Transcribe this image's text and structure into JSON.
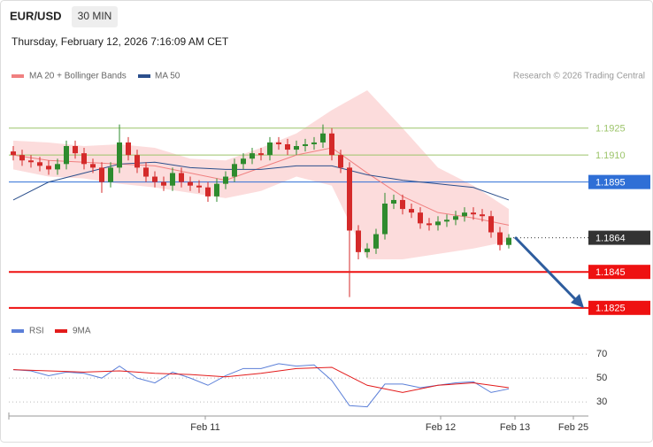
{
  "header": {
    "symbol": "EUR/USD",
    "interval": "30 MIN",
    "timestamp": "Thursday, February 12, 2026 7:16:09 AM CET",
    "copyright": "Research © 2026 Trading Central"
  },
  "chart_data": [
    {
      "type": "candlestick",
      "x": [
        0,
        1,
        2,
        3,
        4,
        5,
        6,
        7,
        8,
        9,
        10,
        11,
        12,
        13,
        14,
        15,
        16,
        17,
        18,
        19,
        20,
        21,
        22,
        23,
        24,
        25,
        26,
        27,
        28,
        29,
        30,
        31,
        32,
        33,
        34,
        35,
        36,
        37,
        38,
        39,
        40,
        41,
        42,
        43,
        44,
        45,
        46,
        47,
        48,
        49,
        50,
        51,
        52,
        53,
        54,
        55,
        56
      ],
      "open": [
        1.1912,
        1.191,
        1.1907,
        1.1906,
        1.1904,
        1.1902,
        1.1905,
        1.1915,
        1.1911,
        1.1905,
        1.1903,
        1.1895,
        1.1903,
        1.1917,
        1.191,
        1.1903,
        1.1898,
        1.1895,
        1.1893,
        1.19,
        1.1895,
        1.1893,
        1.1892,
        1.1887,
        1.1894,
        1.1898,
        1.1905,
        1.1908,
        1.1911,
        1.191,
        1.1917,
        1.1916,
        1.1913,
        1.1915,
        1.1916,
        1.1917,
        1.1922,
        1.191,
        1.1903,
        1.1868,
        1.1856,
        1.1858,
        1.1866,
        1.1883,
        1.1885,
        1.188,
        1.1878,
        1.1872,
        1.1871,
        1.1873,
        1.1874,
        1.1876,
        1.1878,
        1.1877,
        1.1876,
        1.1867,
        1.186
      ],
      "high": [
        1.1915,
        1.1913,
        1.191,
        1.1909,
        1.1907,
        1.1908,
        1.1918,
        1.1918,
        1.1914,
        1.1908,
        1.1906,
        1.1906,
        1.1927,
        1.192,
        1.1913,
        1.1906,
        1.1901,
        1.1898,
        1.1903,
        1.1903,
        1.1898,
        1.1896,
        1.1895,
        1.1897,
        1.1901,
        1.1908,
        1.1911,
        1.1914,
        1.1914,
        1.192,
        1.192,
        1.1919,
        1.1918,
        1.1919,
        1.192,
        1.1927,
        1.1925,
        1.1913,
        1.1906,
        1.1871,
        1.1861,
        1.1869,
        1.1889,
        1.1888,
        1.1888,
        1.1883,
        1.1881,
        1.1875,
        1.1876,
        1.1877,
        1.1879,
        1.1881,
        1.1881,
        1.188,
        1.1879,
        1.187,
        1.1866
      ],
      "low": [
        1.1907,
        1.1904,
        1.1903,
        1.1901,
        1.1899,
        1.1899,
        1.1902,
        1.1908,
        1.1902,
        1.19,
        1.1889,
        1.1892,
        1.19,
        1.1907,
        1.19,
        1.1895,
        1.1892,
        1.189,
        1.189,
        1.1892,
        1.189,
        1.1889,
        1.1884,
        1.1884,
        1.1891,
        1.1895,
        1.1902,
        1.1905,
        1.1907,
        1.1907,
        1.1913,
        1.191,
        1.191,
        1.1912,
        1.1913,
        1.1914,
        1.1907,
        1.19,
        1.1831,
        1.1852,
        1.1853,
        1.1855,
        1.1863,
        1.188,
        1.1877,
        1.1875,
        1.1869,
        1.1868,
        1.1868,
        1.187,
        1.1871,
        1.1873,
        1.1874,
        1.1873,
        1.1864,
        1.1857,
        1.1858
      ],
      "close": [
        1.191,
        1.1907,
        1.1906,
        1.1904,
        1.1902,
        1.1905,
        1.1915,
        1.1911,
        1.1905,
        1.1903,
        1.1895,
        1.1903,
        1.1917,
        1.191,
        1.1903,
        1.1898,
        1.1895,
        1.1893,
        1.19,
        1.1895,
        1.1893,
        1.1892,
        1.1887,
        1.1894,
        1.1898,
        1.1905,
        1.1908,
        1.1911,
        1.191,
        1.1917,
        1.1916,
        1.1913,
        1.1915,
        1.1916,
        1.1917,
        1.1922,
        1.191,
        1.1903,
        1.1868,
        1.1856,
        1.1858,
        1.1866,
        1.1883,
        1.1885,
        1.188,
        1.1878,
        1.1872,
        1.1871,
        1.1873,
        1.1874,
        1.1876,
        1.1878,
        1.1877,
        1.1876,
        1.1867,
        1.186,
        1.1864
      ],
      "up_color": "#2e8b2e",
      "down_color": "#d42a2a",
      "xlim": [
        -0.5,
        65
      ],
      "ylim": [
        1.1819,
        1.1947
      ],
      "series": [
        {
          "name": "MA 20 + Bollinger Bands",
          "color": "#f08080",
          "band_color": "#fbd3d3",
          "x": [
            0,
            4,
            8,
            12,
            16,
            20,
            24,
            28,
            32,
            36,
            40,
            44,
            48,
            52,
            56
          ],
          "values": [
            1.191,
            1.1907,
            1.1906,
            1.1905,
            1.1904,
            1.19,
            1.1896,
            1.1903,
            1.191,
            1.1914,
            1.19,
            1.1887,
            1.1878,
            1.1875,
            1.1871
          ],
          "upper": [
            1.1918,
            1.1917,
            1.1915,
            1.1916,
            1.1914,
            1.1908,
            1.1907,
            1.1914,
            1.1922,
            1.1935,
            1.1946,
            1.1925,
            1.1903,
            1.1893,
            1.188
          ],
          "lower": [
            1.1902,
            1.1898,
            1.1897,
            1.1894,
            1.1892,
            1.1889,
            1.1886,
            1.189,
            1.1898,
            1.1893,
            1.1852,
            1.1852,
            1.1855,
            1.1858,
            1.1862
          ]
        },
        {
          "name": "MA 50",
          "color": "#2b4f8c",
          "x": [
            0,
            4,
            8,
            12,
            16,
            20,
            24,
            28,
            32,
            36,
            40,
            44,
            48,
            52,
            56
          ],
          "values": [
            1.1885,
            1.1895,
            1.19,
            1.1905,
            1.1906,
            1.1903,
            1.1902,
            1.1902,
            1.1904,
            1.1904,
            1.1899,
            1.1896,
            1.1894,
            1.1892,
            1.1885
          ]
        }
      ],
      "levels": [
        {
          "value": 1.1925,
          "color": "#9cc46a",
          "style": "plain",
          "line": "thin"
        },
        {
          "value": 1.191,
          "label": "1.1910",
          "color": "#9cc46a",
          "style": "plain",
          "line": "thin"
        },
        {
          "value": 1.1895,
          "color": "#2f6fd6",
          "style": "box",
          "line": "thin"
        },
        {
          "value": 1.1864,
          "color": "#333333",
          "style": "box",
          "line": "dotted"
        },
        {
          "value": 1.1845,
          "color": "#ee1111",
          "style": "box",
          "line": "thick"
        },
        {
          "value": 1.1825,
          "color": "#ee1111",
          "style": "box",
          "line": "thick"
        }
      ]
    },
    {
      "type": "line",
      "xlim": [
        -0.5,
        65
      ],
      "ylim": [
        22,
        76
      ],
      "yticks": [
        30,
        50,
        70
      ],
      "xticks": [
        {
          "value": 21.7,
          "label": "Feb 11"
        },
        {
          "value": 48.3,
          "label": "Feb 12"
        },
        {
          "value": 56.7,
          "label": "Feb 13"
        },
        {
          "value": 63.3,
          "label": "Feb 25"
        }
      ],
      "series": [
        {
          "name": "RSI",
          "color": "#5b7fd8",
          "x": [
            0,
            2,
            4,
            6,
            8,
            10,
            12,
            14,
            16,
            18,
            20,
            22,
            24,
            26,
            28,
            30,
            32,
            34,
            36,
            38,
            40,
            42,
            44,
            46,
            48,
            50,
            52,
            54,
            56
          ],
          "values": [
            57,
            56,
            52,
            55,
            54,
            50,
            60,
            50,
            46,
            55,
            50,
            44,
            52,
            58,
            58,
            62,
            60,
            61,
            48,
            27,
            26,
            45,
            45,
            42,
            44,
            46,
            47,
            38,
            41
          ]
        },
        {
          "name": "9MA",
          "color": "#e31b1b",
          "x": [
            0,
            4,
            8,
            12,
            16,
            20,
            24,
            28,
            32,
            36,
            40,
            44,
            48,
            52,
            56
          ],
          "values": [
            57,
            56,
            55,
            56,
            54,
            53,
            51,
            54,
            58,
            59,
            44,
            38,
            44,
            46,
            42
          ]
        }
      ]
    }
  ]
}
